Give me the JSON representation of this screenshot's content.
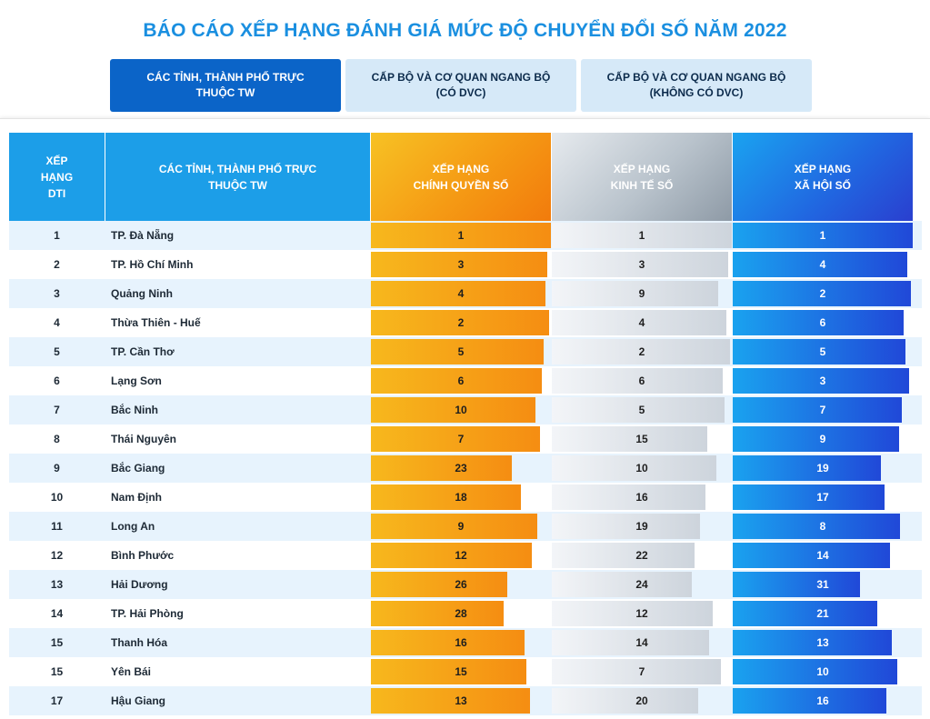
{
  "title": "BÁO CÁO XẾP HẠNG ĐÁNH GIÁ MỨC ĐỘ CHUYỂN ĐỔI SỐ NĂM 2022",
  "tabs": [
    {
      "line1": "CÁC TỈNH, THÀNH PHỐ TRỰC",
      "line2": "THUỘC TW",
      "active": true
    },
    {
      "line1": "CẤP BỘ VÀ CƠ QUAN NGANG BỘ",
      "line2": "(CÓ DVC)",
      "active": false
    },
    {
      "line1": "CẤP BỘ VÀ CƠ QUAN NGANG BỘ",
      "line2": "(KHÔNG CÓ DVC)",
      "active": false
    }
  ],
  "table": {
    "headers": {
      "rank": [
        "XẾP",
        "HẠNG",
        "DTI"
      ],
      "name": [
        "CÁC TỈNH, THÀNH PHỐ TRỰC",
        "THUỘC TW"
      ],
      "cq": [
        "XẾP HẠNG",
        "CHÍNH QUYỀN SỐ"
      ],
      "kt": [
        "XẾP HẠNG",
        "KINH TẾ SỐ"
      ],
      "xh": [
        "XẾP HẠNG",
        "XÃ HỘI SỐ"
      ]
    },
    "rows": [
      {
        "rank": "1",
        "name": "TP. Đà Nẵng",
        "cq": "1",
        "kt": "1",
        "xh": "1"
      },
      {
        "rank": "2",
        "name": "TP. Hồ Chí Minh",
        "cq": "3",
        "kt": "3",
        "xh": "4"
      },
      {
        "rank": "3",
        "name": "Quảng Ninh",
        "cq": "4",
        "kt": "9",
        "xh": "2"
      },
      {
        "rank": "4",
        "name": "Thừa Thiên - Huế",
        "cq": "2",
        "kt": "4",
        "xh": "6"
      },
      {
        "rank": "5",
        "name": "TP. Cần Thơ",
        "cq": "5",
        "kt": "2",
        "xh": "5"
      },
      {
        "rank": "6",
        "name": "Lạng Sơn",
        "cq": "6",
        "kt": "6",
        "xh": "3"
      },
      {
        "rank": "7",
        "name": "Bắc Ninh",
        "cq": "10",
        "kt": "5",
        "xh": "7"
      },
      {
        "rank": "8",
        "name": "Thái Nguyên",
        "cq": "7",
        "kt": "15",
        "xh": "9"
      },
      {
        "rank": "9",
        "name": "Bắc Giang",
        "cq": "23",
        "kt": "10",
        "xh": "19"
      },
      {
        "rank": "10",
        "name": "Nam Định",
        "cq": "18",
        "kt": "16",
        "xh": "17"
      },
      {
        "rank": "11",
        "name": "Long An",
        "cq": "9",
        "kt": "19",
        "xh": "8"
      },
      {
        "rank": "12",
        "name": "Bình Phước",
        "cq": "12",
        "kt": "22",
        "xh": "14"
      },
      {
        "rank": "13",
        "name": "Hải Dương",
        "cq": "26",
        "kt": "24",
        "xh": "31"
      },
      {
        "rank": "14",
        "name": "TP. Hải Phòng",
        "cq": "28",
        "kt": "12",
        "xh": "21"
      },
      {
        "rank": "15",
        "name": "Thanh Hóa",
        "cq": "16",
        "kt": "14",
        "xh": "13"
      },
      {
        "rank": "15",
        "name": "Yên Bái",
        "cq": "15",
        "kt": "7",
        "xh": "10"
      },
      {
        "rank": "17",
        "name": "Hậu Giang",
        "cq": "13",
        "kt": "20",
        "xh": "16"
      }
    ]
  },
  "colors": {
    "title": "#1a8fe0",
    "tab_active": "#0b64c8",
    "tab_inactive": "#d6e9f8",
    "header_blue": "#1c9ee8",
    "row_alt": "#e7f3fd",
    "cq_bar": "#f59a14",
    "kt_bar": "#cdd4dc",
    "xh_bar": "#2165e0"
  }
}
